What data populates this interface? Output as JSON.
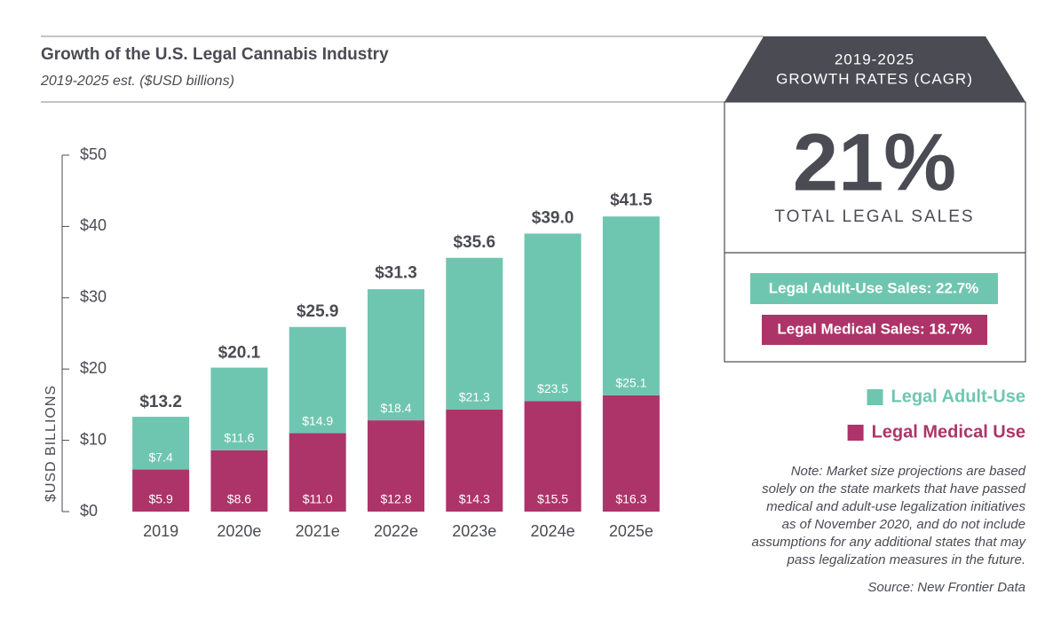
{
  "chart_data": {
    "type": "bar",
    "stacked": true,
    "title": "Growth of the U.S. Legal Cannabis Industry",
    "subtitle": "2019-2025 est. ($USD billions)",
    "ylabel": "$USD BILLIONS",
    "categories": [
      "2019",
      "2020e",
      "2021e",
      "2022e",
      "2023e",
      "2024e",
      "2025e"
    ],
    "series": [
      {
        "name": "Legal Medical Use",
        "color": "#ad3468",
        "values": [
          5.9,
          8.6,
          11.0,
          12.8,
          14.3,
          15.5,
          16.3
        ],
        "value_labels": [
          "$5.9",
          "$8.6",
          "$11.0",
          "$12.8",
          "$14.3",
          "$15.5",
          "$16.3"
        ]
      },
      {
        "name": "Legal Adult-Use",
        "color": "#6fc6b0",
        "values": [
          7.4,
          11.6,
          14.9,
          18.4,
          21.3,
          23.5,
          25.1
        ],
        "value_labels": [
          "$7.4",
          "$11.6",
          "$14.9",
          "$18.4",
          "$21.3",
          "$23.5",
          "$25.1"
        ]
      }
    ],
    "totals": [
      13.2,
      20.1,
      25.9,
      31.3,
      35.6,
      39.0,
      41.5
    ],
    "total_labels": [
      "$13.2",
      "$20.1",
      "$25.9",
      "$31.3",
      "$35.6",
      "$39.0",
      "$41.5"
    ],
    "ylim": [
      0,
      50
    ],
    "yticks": [
      {
        "value": 0,
        "label": "$0"
      },
      {
        "value": 10,
        "label": "$10"
      },
      {
        "value": 20,
        "label": "$20"
      },
      {
        "value": 30,
        "label": "$30"
      },
      {
        "value": 40,
        "label": "$40"
      },
      {
        "value": 50,
        "label": "$50"
      }
    ],
    "grid": false,
    "legend": "right"
  },
  "cagr_panel": {
    "heading": [
      "2019-2025",
      "GROWTH RATES (CAGR)"
    ],
    "headline": "21%",
    "caption": "TOTAL LEGAL SALES",
    "badges": [
      "Legal Adult-Use Sales: 22.7%",
      "Legal Medical Sales: 18.7%"
    ]
  },
  "note": [
    "Note: Market size projections are based",
    "solely on the state markets that have passed",
    "medical and adult-use legalization initiatives",
    "as of November 2020, and do not include",
    "assumptions for any additional states that may",
    "pass legalization measures in the future."
  ],
  "source": "Source: New Frontier Data"
}
